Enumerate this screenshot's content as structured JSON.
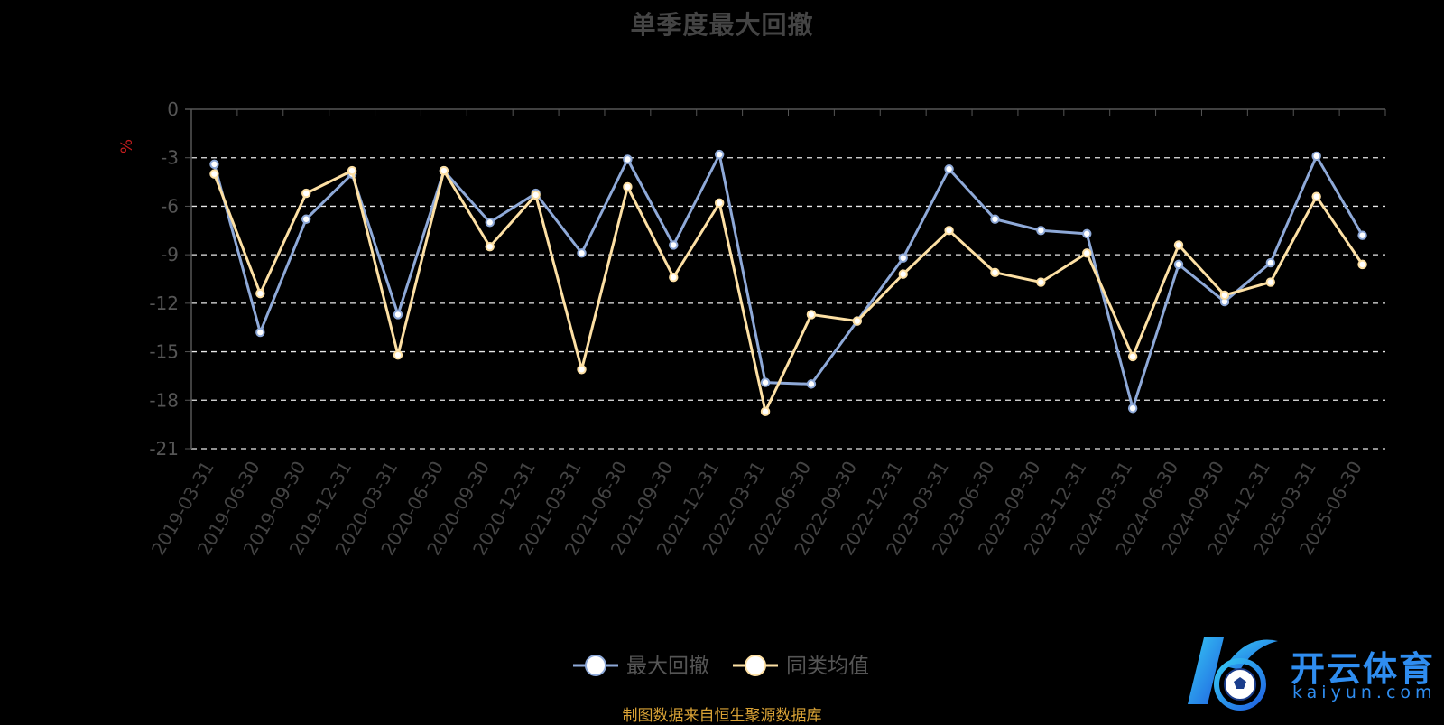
{
  "chart_data": {
    "type": "line",
    "title": "单季度最大回撤",
    "ylabel": "%",
    "ylim": [
      -21,
      0
    ],
    "yticks": [
      0,
      -3,
      -6,
      -9,
      -12,
      -15,
      -18,
      -21
    ],
    "grid": "dashed horizontal",
    "legend_position": "bottom-center",
    "categories": [
      "2019-03-31",
      "2019-06-30",
      "2019-09-30",
      "2019-12-31",
      "2020-03-31",
      "2020-06-30",
      "2020-09-30",
      "2020-12-31",
      "2021-03-31",
      "2021-06-30",
      "2021-09-30",
      "2021-12-31",
      "2022-03-31",
      "2022-06-30",
      "2022-09-30",
      "2022-12-31",
      "2023-03-31",
      "2023-06-30",
      "2023-09-30",
      "2023-12-31",
      "2024-03-31",
      "2024-06-30",
      "2024-09-30",
      "2024-12-31",
      "2025-03-31",
      "2025-06-30"
    ],
    "series": [
      {
        "name": "最大回撤",
        "color": "#8ea9d8",
        "values": [
          -3.4,
          -13.8,
          -6.8,
          -4.0,
          -12.7,
          -3.8,
          -7.0,
          -5.2,
          -8.9,
          -3.1,
          -8.4,
          -2.8,
          -16.9,
          -17.0,
          -13.1,
          -9.2,
          -3.7,
          -6.8,
          -7.5,
          -7.7,
          -18.5,
          -9.6,
          -11.9,
          -9.5,
          -2.9,
          -7.8
        ]
      },
      {
        "name": "同类均值",
        "color": "#fde0a4",
        "values": [
          -4.0,
          -11.4,
          -5.2,
          -3.8,
          -15.2,
          -3.8,
          -8.5,
          -5.3,
          -16.1,
          -4.8,
          -10.4,
          -5.8,
          -18.7,
          -12.7,
          -13.1,
          -10.2,
          -7.5,
          -10.1,
          -10.7,
          -8.9,
          -15.3,
          -8.4,
          -11.5,
          -10.7,
          -5.4,
          -9.6
        ]
      }
    ]
  },
  "footer": {
    "source": "制图数据来自恒生聚源数据库"
  },
  "watermark": {
    "name": "开云体育",
    "domain": "kaiyun.com",
    "logo": "K-soccer-ball-logo"
  }
}
